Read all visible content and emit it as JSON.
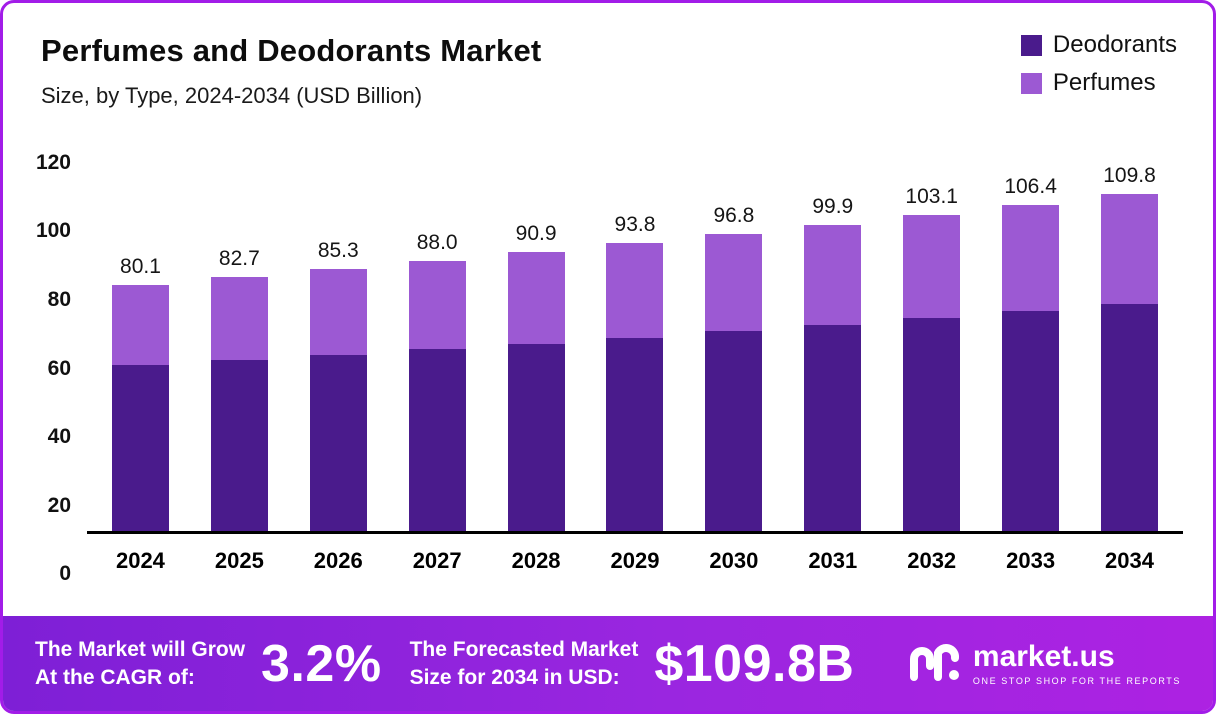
{
  "chart_data": {
    "type": "bar",
    "stacked": true,
    "title": "Perfumes and Deodorants Market",
    "subtitle": "Size, by Type, 2024-2034 (USD Billion)",
    "categories": [
      "2024",
      "2025",
      "2026",
      "2027",
      "2028",
      "2029",
      "2030",
      "2031",
      "2032",
      "2033",
      "2034"
    ],
    "series": [
      {
        "name": "Deodorants",
        "color": "#4a1b8c",
        "values": [
          54.0,
          55.8,
          57.4,
          59.2,
          61.0,
          63.0,
          65.2,
          67.2,
          69.5,
          71.7,
          74.1
        ]
      },
      {
        "name": "Perfumes",
        "color": "#9c59d3",
        "values": [
          26.1,
          26.9,
          27.9,
          28.8,
          29.9,
          30.8,
          31.6,
          32.7,
          33.6,
          34.7,
          35.7
        ]
      }
    ],
    "totals": [
      "80.1",
      "82.7",
      "85.3",
      "88.0",
      "90.9",
      "93.8",
      "96.8",
      "99.9",
      "103.1",
      "106.4",
      "109.8"
    ],
    "ylim": [
      0,
      120
    ],
    "yticks": [
      0,
      20,
      40,
      60,
      80,
      100,
      120
    ],
    "xlabel": "",
    "ylabel": "",
    "grid": false,
    "legend_position": "top-right"
  },
  "banner": {
    "cagr_label_line1": "The Market will Grow",
    "cagr_label_line2": "At the CAGR of:",
    "cagr_value": "3.2%",
    "forecast_label_line1": "The Forecasted Market",
    "forecast_label_line2": "Size for 2034 in USD:",
    "forecast_value": "$109.8B",
    "brand": "market.us",
    "brand_tagline": "ONE STOP SHOP FOR THE REPORTS"
  },
  "colors": {
    "deodorants": "#4a1b8c",
    "perfumes": "#9c59d3",
    "frame_border": "#a21ce8",
    "banner_gradient_start": "#7e1fd6",
    "banner_gradient_end": "#ad22e2"
  }
}
